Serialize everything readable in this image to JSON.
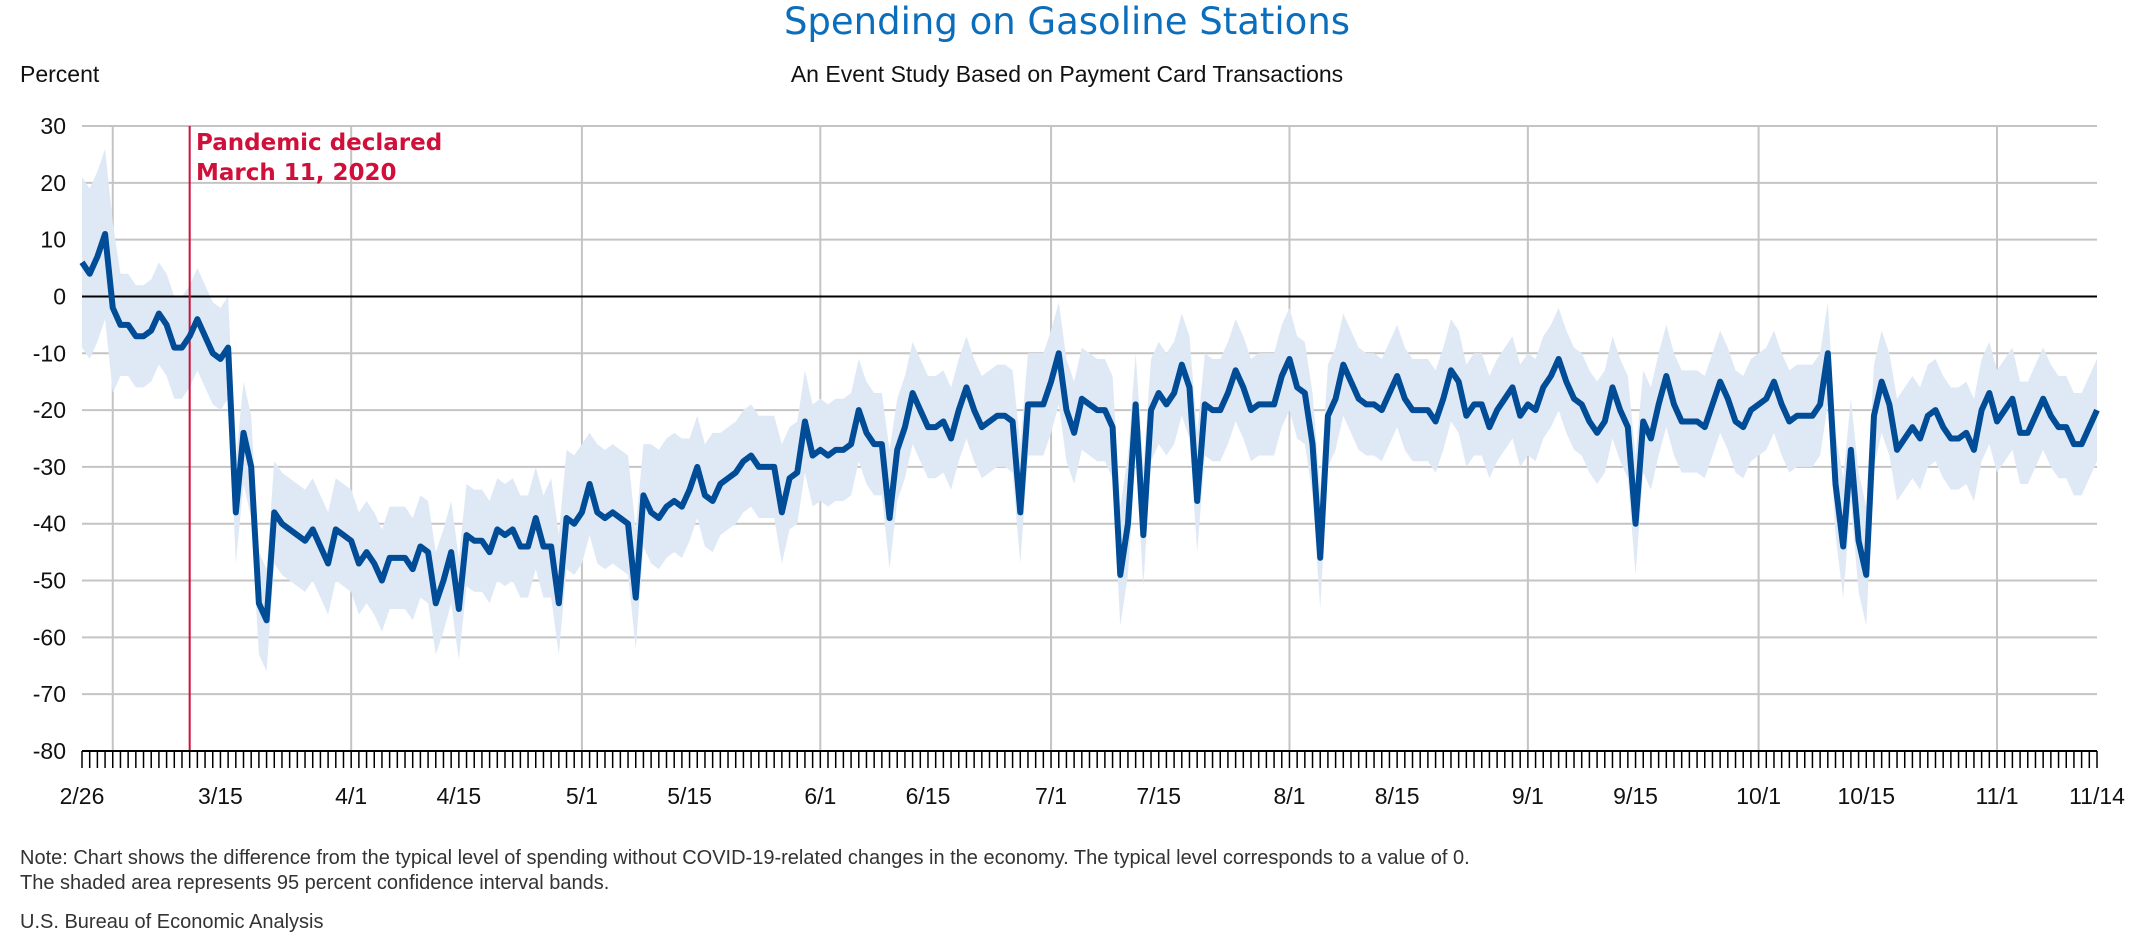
{
  "chart_data": {
    "type": "line",
    "title": "Spending on Gasoline Stations",
    "subtitle": "An Event Study Based on Payment Card Transactions",
    "ylabel": "Percent",
    "xlabel": "",
    "ylim": [
      -80,
      30
    ],
    "yticks": [
      30,
      20,
      10,
      0,
      -10,
      -20,
      -30,
      -40,
      -50,
      -60,
      -70,
      -80
    ],
    "x_start": "2/26",
    "x_end": "11/14",
    "year": 2020,
    "xticks": [
      "2/26",
      "3/15",
      "4/1",
      "4/15",
      "5/1",
      "5/15",
      "6/1",
      "6/15",
      "7/1",
      "7/15",
      "8/1",
      "8/15",
      "9/1",
      "9/15",
      "10/1",
      "10/15",
      "11/1",
      "11/14"
    ],
    "vertical_grid": [
      "3/1",
      "4/1",
      "5/1",
      "6/1",
      "7/1",
      "8/1",
      "9/1",
      "10/1",
      "11/1"
    ],
    "grid": true,
    "colors": {
      "line": "#004c97",
      "band": "#dfe9f6",
      "annotation": "#d0103a",
      "title": "#0a6ebd",
      "grid": "#c4c4c4",
      "zero": "#000000"
    },
    "series": [
      {
        "values": [
          6,
          4,
          7,
          11,
          -2,
          -5,
          -5,
          -7,
          -7,
          -6,
          -3,
          -5,
          -9,
          -9,
          -7,
          -4,
          -7,
          -10,
          -11,
          -9,
          -38,
          -24,
          -30,
          -54,
          -57,
          -38,
          -40,
          -41,
          -42,
          -43,
          -41,
          -44,
          -47,
          -41,
          -42,
          -43,
          -47,
          -45,
          -47,
          -50,
          -46,
          -46,
          -46,
          -48,
          -44,
          -45,
          -54,
          -50,
          -45,
          -55,
          -42,
          -43,
          -43,
          -45,
          -41,
          -42,
          -41,
          -44,
          -44,
          -39,
          -44,
          -44,
          -54,
          -39,
          -40,
          -38,
          -33,
          -38,
          -39,
          -38,
          -39,
          -40,
          -53,
          -35,
          -38,
          -39,
          -37,
          -36,
          -37,
          -34,
          -30,
          -35,
          -36,
          -33,
          -32,
          -31,
          -29,
          -28,
          -30,
          -30,
          -30,
          -38,
          -32,
          -31,
          -22,
          -28,
          -27,
          -28,
          -27,
          -27,
          -26,
          -20,
          -24,
          -26,
          -26,
          -39,
          -27,
          -23,
          -17,
          -20,
          -23,
          -23,
          -22,
          -25,
          -20,
          -16,
          -20,
          -23,
          -22,
          -21,
          -21,
          -22,
          -38,
          -19,
          -19,
          -19,
          -15,
          -10,
          -20,
          -24,
          -18,
          -19,
          -20,
          -20,
          -23,
          -49,
          -40,
          -19,
          -42,
          -20,
          -17,
          -19,
          -17,
          -12,
          -16,
          -36,
          -19,
          -20,
          -20,
          -17,
          -13,
          -16,
          -20,
          -19,
          -19,
          -19,
          -14,
          -11,
          -16,
          -17,
          -26,
          -46,
          -21,
          -18,
          -12,
          -15,
          -18,
          -19,
          -19,
          -20,
          -17,
          -14,
          -18,
          -20,
          -20,
          -20,
          -22,
          -18,
          -13,
          -15,
          -21,
          -19,
          -19,
          -23,
          -20,
          -18,
          -16,
          -21,
          -19,
          -20,
          -16,
          -14,
          -11,
          -15,
          -18,
          -19,
          -22,
          -24,
          -22,
          -16,
          -20,
          -23,
          -40,
          -22,
          -25,
          -19,
          -14,
          -19,
          -22,
          -22,
          -22,
          -23,
          -19,
          -15,
          -18,
          -22,
          -23,
          -20,
          -19,
          -18,
          -15,
          -19,
          -22,
          -21,
          -21,
          -21,
          -19,
          -10,
          -33,
          -44,
          -27,
          -43,
          -49,
          -21,
          -15,
          -19,
          -27,
          -25,
          -23,
          -25,
          -21,
          -20,
          -23,
          -25,
          -25,
          -24,
          -27,
          -20,
          -17,
          -22,
          -20,
          -18,
          -24,
          -24,
          -21,
          -18,
          -21,
          -23,
          -23,
          -26,
          -26,
          -23,
          -20
        ],
        "ci_halfwidth": [
          {
            "from": "2/26",
            "to": "3/1",
            "value": 15
          },
          {
            "from": "3/2",
            "to": "11/14",
            "value": 9
          }
        ]
      }
    ],
    "annotations": [
      {
        "date": "3/11",
        "line1": "Pandemic declared",
        "line2": "March 11, 2020"
      }
    ]
  },
  "notes": {
    "line1": "Note: Chart shows the difference from the typical level of spending without COVID-19-related changes in the economy. The typical level corresponds to a value of 0.",
    "line2": "The shaded area represents 95 percent confidence interval bands.",
    "source": "U.S. Bureau of Economic Analysis"
  }
}
